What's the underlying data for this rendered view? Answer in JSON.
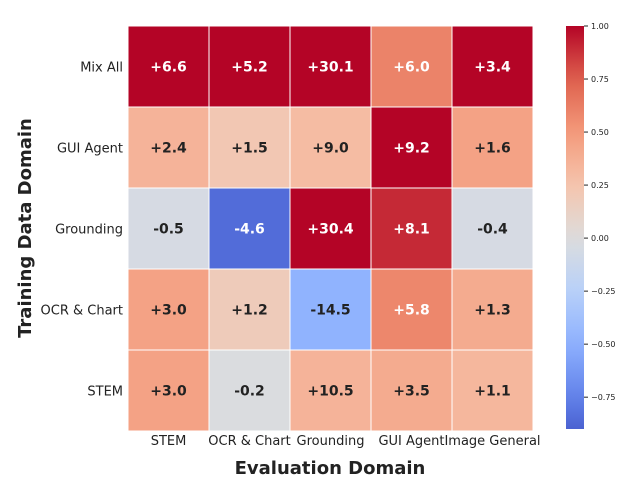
{
  "chart_data": {
    "type": "heatmap",
    "xlabel": "Evaluation Domain",
    "ylabel": "Training Data Domain",
    "x_categories": [
      "STEM",
      "OCR & Chart",
      "Grounding",
      "GUI Agent",
      "Image General"
    ],
    "y_categories": [
      "Mix All",
      "GUI Agent",
      "Grounding",
      "OCR & Chart",
      "STEM"
    ],
    "values": [
      [
        6.6,
        5.2,
        30.1,
        6.0,
        3.4
      ],
      [
        2.4,
        1.5,
        9.0,
        9.2,
        1.6
      ],
      [
        -0.5,
        -4.6,
        30.4,
        8.1,
        -0.4
      ],
      [
        3.0,
        1.2,
        -14.5,
        5.8,
        1.3
      ],
      [
        3.0,
        -0.2,
        10.5,
        3.5,
        1.1
      ]
    ],
    "labels": [
      [
        "+6.6",
        "+5.2",
        "+30.1",
        "+6.0",
        "+3.4"
      ],
      [
        "+2.4",
        "+1.5",
        "+9.0",
        "+9.2",
        "+1.6"
      ],
      [
        "-0.5",
        "-4.6",
        "+30.4",
        "+8.1",
        "-0.4"
      ],
      [
        "+3.0",
        "+1.2",
        "-14.5",
        "+5.8",
        "+1.3"
      ],
      [
        "+3.0",
        "-0.2",
        "+10.5",
        "+3.5",
        "+1.1"
      ]
    ],
    "color_values": [
      [
        1.0,
        1.0,
        1.0,
        0.6,
        1.0
      ],
      [
        0.35,
        0.22,
        0.3,
        1.0,
        0.45
      ],
      [
        -0.05,
        -0.85,
        1.0,
        0.9,
        -0.05
      ],
      [
        0.45,
        0.18,
        -0.48,
        0.58,
        0.4
      ],
      [
        0.45,
        -0.02,
        0.35,
        0.4,
        0.33
      ]
    ],
    "colormap": "coolwarm",
    "colorbar": {
      "range": [
        -0.9,
        1.0
      ],
      "ticks": [
        1.0,
        0.75,
        0.5,
        0.25,
        0.0,
        -0.25,
        -0.5,
        -0.75
      ],
      "tick_labels": [
        "1.00",
        "0.75",
        "0.50",
        "0.25",
        "0.00",
        "−0.25",
        "−0.50",
        "−0.75"
      ]
    }
  }
}
